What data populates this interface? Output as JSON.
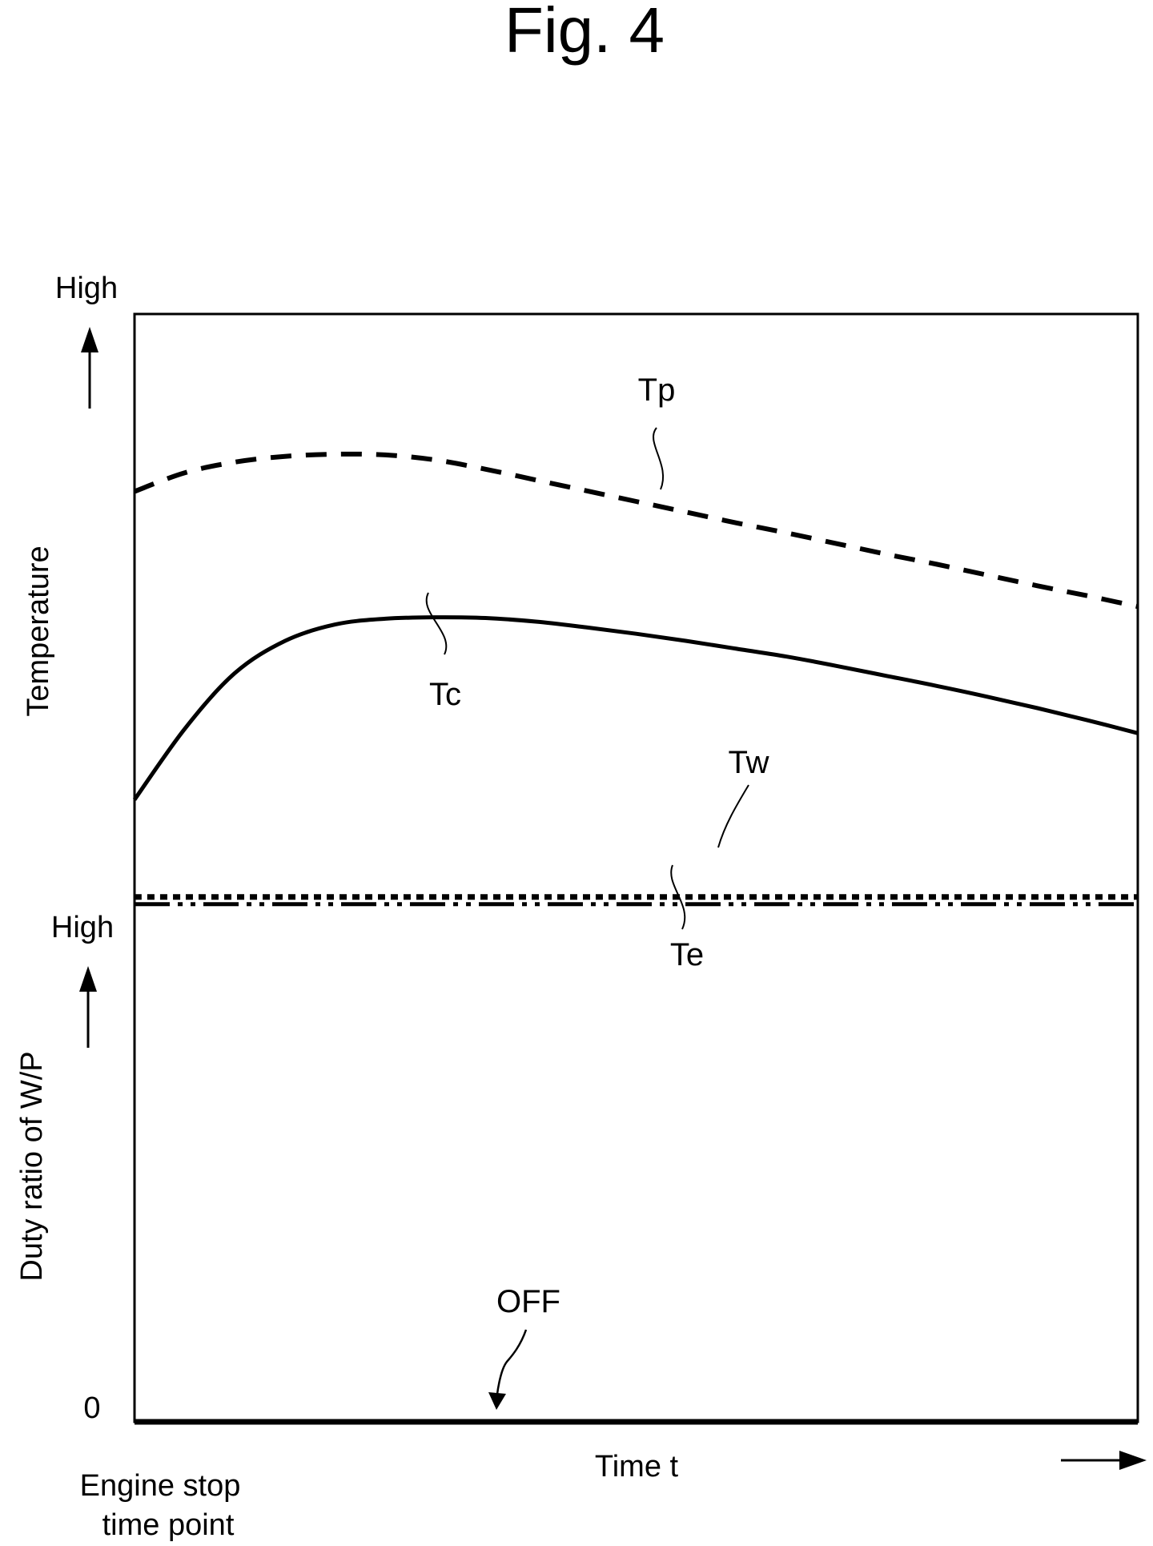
{
  "figure_title": "Fig. 4",
  "chart_data": [
    {
      "type": "line",
      "ylabel": "Temperature",
      "y_axis_high_label": "High",
      "x": [
        0,
        0.05,
        0.1,
        0.15,
        0.2,
        0.25,
        0.3,
        0.35,
        0.4,
        0.45,
        0.5,
        0.55,
        0.6,
        0.65,
        0.7,
        0.75,
        0.8,
        0.85,
        0.9,
        0.95,
        1.0
      ],
      "series": [
        {
          "name": "Tp",
          "style": "dashed",
          "values": [
            0.752,
            0.778,
            0.793,
            0.801,
            0.804,
            0.803,
            0.796,
            0.783,
            0.768,
            0.753,
            0.738,
            0.723,
            0.708,
            0.694,
            0.679,
            0.664,
            0.65,
            0.635,
            0.62,
            0.606,
            0.591
          ]
        },
        {
          "name": "Tc",
          "style": "solid",
          "values": [
            0.321,
            0.42,
            0.498,
            0.543,
            0.566,
            0.574,
            0.576,
            0.575,
            0.57,
            0.562,
            0.553,
            0.543,
            0.532,
            0.521,
            0.508,
            0.494,
            0.48,
            0.465,
            0.449,
            0.432,
            0.414
          ]
        },
        {
          "name": "Tw",
          "style": "dotted",
          "values": [
            0.185,
            0.185,
            0.185,
            0.185,
            0.185,
            0.185,
            0.185,
            0.185,
            0.185,
            0.185,
            0.185,
            0.185,
            0.185,
            0.185,
            0.185,
            0.185,
            0.185,
            0.185,
            0.185,
            0.185,
            0.185
          ]
        },
        {
          "name": "Te",
          "style": "dash-dot-dot",
          "values": [
            0.175,
            0.175,
            0.175,
            0.175,
            0.175,
            0.175,
            0.175,
            0.175,
            0.175,
            0.175,
            0.175,
            0.175,
            0.175,
            0.175,
            0.175,
            0.175,
            0.175,
            0.175,
            0.175,
            0.175,
            0.175
          ]
        }
      ]
    },
    {
      "type": "line",
      "ylabel": "Duty ratio of W/P",
      "y_axis_high_label": "High",
      "y_zero_label": "0",
      "xlabel": "Time t",
      "x_origin_label": [
        "Engine stop",
        "time point"
      ],
      "annotation": "OFF",
      "series": [
        {
          "name": "",
          "style": "solid",
          "x": [
            0,
            1.0
          ],
          "values": [
            0,
            0
          ]
        }
      ]
    }
  ]
}
